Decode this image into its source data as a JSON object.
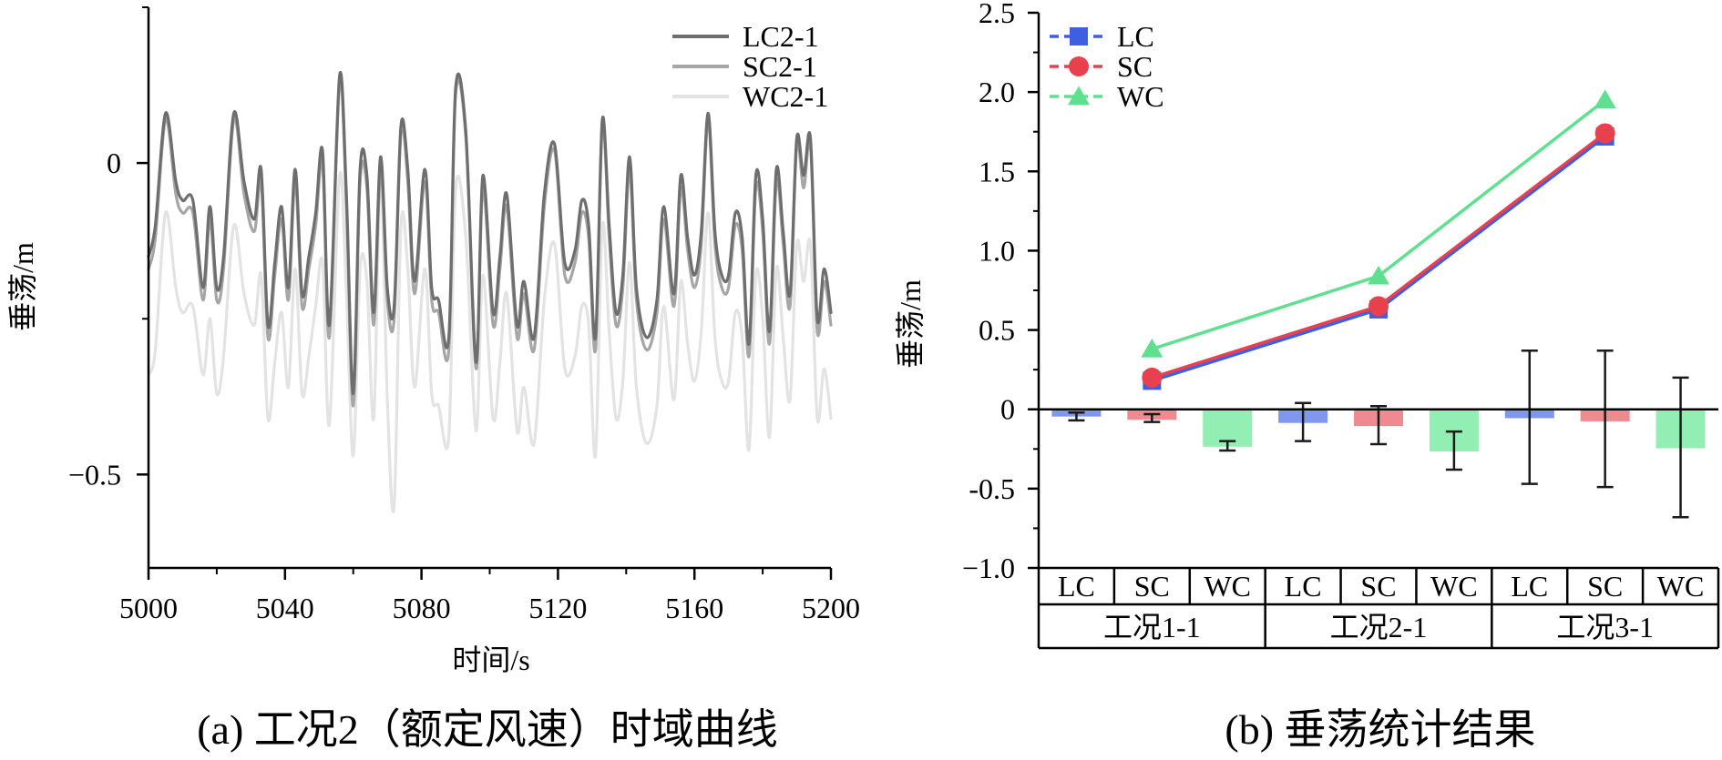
{
  "chart_data": [
    {
      "type": "line",
      "panel": "a",
      "title": "(a) 工况2（额定风速）时域曲线",
      "xlabel": "时间/s",
      "ylabel": "垂荡/m",
      "xlim": [
        5000,
        5200
      ],
      "ylim": [
        -0.65,
        0.25
      ],
      "xticks": [
        5000,
        5040,
        5080,
        5120,
        5160,
        5200
      ],
      "yticks": [
        0,
        -0.5
      ],
      "ytick_labels": [
        "0",
        "−0.5"
      ],
      "legend_position": "top-right",
      "series": [
        {
          "name": "LC2-1",
          "color": "#6e6e6e",
          "x": [
            5000,
            5002,
            5005,
            5008,
            5010,
            5013,
            5016,
            5018,
            5020,
            5022,
            5025,
            5028,
            5031,
            5033,
            5035,
            5037,
            5039,
            5041,
            5043,
            5045,
            5047,
            5049,
            5051,
            5053,
            5056,
            5058,
            5060,
            5062,
            5064,
            5066,
            5068,
            5070,
            5072,
            5074,
            5076,
            5078,
            5081,
            5083,
            5085,
            5088,
            5090,
            5093,
            5096,
            5098,
            5101,
            5103,
            5105,
            5108,
            5110,
            5113,
            5116,
            5119,
            5122,
            5125,
            5127,
            5129,
            5131,
            5133,
            5135,
            5137,
            5139,
            5141,
            5143,
            5146,
            5149,
            5151,
            5154,
            5156,
            5158,
            5160,
            5162,
            5164,
            5166,
            5168,
            5170,
            5172,
            5174,
            5176,
            5178,
            5180,
            5182,
            5184,
            5186,
            5188,
            5190,
            5192,
            5194,
            5196,
            5198,
            5200
          ],
          "values": [
            -0.15,
            -0.1,
            0.08,
            -0.03,
            -0.06,
            -0.06,
            -0.2,
            -0.07,
            -0.2,
            -0.15,
            0.08,
            -0.03,
            -0.09,
            -0.01,
            -0.26,
            -0.16,
            -0.07,
            -0.2,
            -0.01,
            -0.21,
            -0.15,
            -0.08,
            0.02,
            -0.26,
            0.14,
            -0.05,
            -0.37,
            -0.01,
            -0.02,
            -0.24,
            0.01,
            -0.2,
            -0.23,
            0.06,
            -0.01,
            -0.19,
            -0.01,
            -0.2,
            -0.22,
            -0.28,
            0.12,
            0.05,
            -0.32,
            -0.02,
            -0.24,
            -0.15,
            -0.05,
            -0.26,
            -0.19,
            -0.28,
            -0.05,
            0.03,
            -0.16,
            -0.14,
            -0.06,
            -0.1,
            -0.28,
            0.07,
            -0.1,
            -0.24,
            -0.18,
            0.01,
            -0.2,
            -0.28,
            -0.22,
            -0.07,
            -0.21,
            -0.02,
            -0.12,
            -0.18,
            -0.11,
            0.08,
            -0.11,
            -0.18,
            -0.18,
            -0.08,
            -0.12,
            -0.29,
            -0.02,
            -0.09,
            -0.27,
            -0.01,
            -0.11,
            -0.21,
            0.04,
            -0.02,
            0.04,
            -0.25,
            -0.17,
            -0.24
          ]
        },
        {
          "name": "SC2-1",
          "color": "#a6a6a6",
          "x": [
            5000,
            5002,
            5005,
            5008,
            5010,
            5013,
            5016,
            5018,
            5020,
            5022,
            5025,
            5028,
            5031,
            5033,
            5035,
            5037,
            5039,
            5041,
            5043,
            5045,
            5047,
            5049,
            5051,
            5053,
            5056,
            5058,
            5060,
            5062,
            5064,
            5066,
            5068,
            5070,
            5072,
            5074,
            5076,
            5078,
            5081,
            5083,
            5085,
            5088,
            5090,
            5093,
            5096,
            5098,
            5101,
            5103,
            5105,
            5108,
            5110,
            5113,
            5116,
            5119,
            5122,
            5125,
            5127,
            5129,
            5131,
            5133,
            5135,
            5137,
            5139,
            5141,
            5143,
            5146,
            5149,
            5151,
            5154,
            5156,
            5158,
            5160,
            5162,
            5164,
            5166,
            5168,
            5170,
            5172,
            5174,
            5176,
            5178,
            5180,
            5182,
            5184,
            5186,
            5188,
            5190,
            5192,
            5194,
            5196,
            5198,
            5200
          ],
          "values": [
            -0.17,
            -0.12,
            0.07,
            -0.05,
            -0.08,
            -0.08,
            -0.22,
            -0.09,
            -0.22,
            -0.17,
            0.07,
            -0.05,
            -0.11,
            -0.03,
            -0.28,
            -0.18,
            -0.09,
            -0.22,
            -0.03,
            -0.23,
            -0.17,
            -0.1,
            0.0,
            -0.28,
            0.13,
            -0.07,
            -0.39,
            -0.03,
            -0.04,
            -0.26,
            -0.01,
            -0.22,
            -0.25,
            0.05,
            -0.03,
            -0.21,
            -0.03,
            -0.22,
            -0.24,
            -0.3,
            0.11,
            0.04,
            -0.33,
            -0.04,
            -0.26,
            -0.17,
            -0.07,
            -0.28,
            -0.21,
            -0.3,
            -0.07,
            0.02,
            -0.18,
            -0.16,
            -0.08,
            -0.12,
            -0.3,
            0.06,
            -0.12,
            -0.26,
            -0.2,
            -0.01,
            -0.22,
            -0.3,
            -0.24,
            -0.09,
            -0.23,
            -0.04,
            -0.14,
            -0.2,
            -0.13,
            0.07,
            -0.13,
            -0.2,
            -0.2,
            -0.1,
            -0.14,
            -0.31,
            -0.04,
            -0.11,
            -0.29,
            -0.03,
            -0.13,
            -0.23,
            0.03,
            -0.04,
            0.03,
            -0.27,
            -0.19,
            -0.26
          ]
        },
        {
          "name": "WC2-1",
          "color": "#e3e3e3",
          "x": [
            5000,
            5002,
            5005,
            5008,
            5010,
            5013,
            5016,
            5018,
            5020,
            5022,
            5025,
            5028,
            5031,
            5033,
            5035,
            5037,
            5039,
            5041,
            5043,
            5045,
            5047,
            5049,
            5051,
            5053,
            5056,
            5058,
            5060,
            5062,
            5064,
            5066,
            5068,
            5070,
            5072,
            5074,
            5076,
            5078,
            5081,
            5083,
            5085,
            5088,
            5090,
            5093,
            5096,
            5098,
            5101,
            5103,
            5105,
            5108,
            5110,
            5113,
            5116,
            5119,
            5122,
            5125,
            5127,
            5129,
            5131,
            5133,
            5135,
            5137,
            5139,
            5141,
            5143,
            5146,
            5149,
            5151,
            5154,
            5156,
            5158,
            5160,
            5162,
            5164,
            5166,
            5168,
            5170,
            5172,
            5174,
            5176,
            5178,
            5180,
            5182,
            5184,
            5186,
            5188,
            5190,
            5192,
            5194,
            5196,
            5198,
            5200
          ],
          "values": [
            -0.34,
            -0.3,
            -0.08,
            -0.2,
            -0.24,
            -0.23,
            -0.34,
            -0.25,
            -0.37,
            -0.31,
            -0.1,
            -0.21,
            -0.26,
            -0.18,
            -0.41,
            -0.32,
            -0.24,
            -0.36,
            -0.17,
            -0.37,
            -0.31,
            -0.23,
            -0.16,
            -0.42,
            -0.02,
            -0.21,
            -0.47,
            -0.17,
            -0.19,
            -0.41,
            -0.02,
            -0.38,
            -0.55,
            -0.1,
            -0.17,
            -0.36,
            -0.17,
            -0.37,
            -0.39,
            -0.44,
            -0.04,
            -0.12,
            -0.43,
            -0.18,
            -0.41,
            -0.32,
            -0.21,
            -0.43,
            -0.36,
            -0.45,
            -0.22,
            -0.13,
            -0.33,
            -0.31,
            -0.23,
            -0.26,
            -0.47,
            -0.1,
            -0.27,
            -0.41,
            -0.35,
            -0.16,
            -0.36,
            -0.45,
            -0.39,
            -0.23,
            -0.38,
            -0.19,
            -0.29,
            -0.35,
            -0.27,
            -0.08,
            -0.28,
            -0.35,
            -0.35,
            -0.24,
            -0.28,
            -0.46,
            -0.18,
            -0.25,
            -0.44,
            -0.17,
            -0.28,
            -0.38,
            -0.13,
            -0.19,
            -0.13,
            -0.41,
            -0.33,
            -0.41
          ]
        }
      ]
    },
    {
      "type": "bar+line",
      "panel": "b",
      "title": "(b) 垂荡统计结果",
      "ylabel": "垂荡/m",
      "ylim": [
        -1.0,
        2.5
      ],
      "yticks": [
        -1.0,
        -0.5,
        0,
        0.5,
        1.0,
        1.5,
        2.0,
        2.5
      ],
      "ytick_labels": [
        "−1.0",
        "-0.5",
        "0",
        "0.5",
        "1.0",
        "1.5",
        "2.0",
        "2.5"
      ],
      "groups": [
        "工况1-1",
        "工况2-1",
        "工况3-1"
      ],
      "subcategories": [
        "LC",
        "SC",
        "WC"
      ],
      "legend_position": "top-left",
      "lines": [
        {
          "name": "LC",
          "color": "#3d5fe0",
          "marker": "square",
          "values": [
            0.18,
            0.63,
            1.72
          ]
        },
        {
          "name": "SC",
          "color": "#e8404d",
          "marker": "circle",
          "values": [
            0.2,
            0.65,
            1.74
          ]
        },
        {
          "name": "WC",
          "color": "#5ee08e",
          "marker": "triangle",
          "values": [
            0.38,
            0.84,
            1.95
          ]
        }
      ],
      "bars": [
        {
          "group": "工况1-1",
          "sub": "LC",
          "mean": -0.04,
          "err_low": -0.07,
          "err_high": -0.02,
          "color": "#7f97ee"
        },
        {
          "group": "工况1-1",
          "sub": "SC",
          "mean": -0.06,
          "err_low": -0.08,
          "err_high": -0.03,
          "color": "#ee8a90"
        },
        {
          "group": "工况1-1",
          "sub": "WC",
          "mean": -0.23,
          "err_low": -0.26,
          "err_high": -0.2,
          "color": "#92eeb2"
        },
        {
          "group": "工况2-1",
          "sub": "LC",
          "mean": -0.08,
          "err_low": -0.2,
          "err_high": 0.04,
          "color": "#7f97ee"
        },
        {
          "group": "工况2-1",
          "sub": "SC",
          "mean": -0.1,
          "err_low": -0.22,
          "err_high": 0.02,
          "color": "#ee8a90"
        },
        {
          "group": "工况2-1",
          "sub": "WC",
          "mean": -0.26,
          "err_low": -0.38,
          "err_high": -0.14,
          "color": "#92eeb2"
        },
        {
          "group": "工况3-1",
          "sub": "LC",
          "mean": -0.05,
          "err_low": -0.47,
          "err_high": 0.37,
          "color": "#7f97ee"
        },
        {
          "group": "工况3-1",
          "sub": "SC",
          "mean": -0.07,
          "err_low": -0.49,
          "err_high": 0.37,
          "color": "#ee8a90"
        },
        {
          "group": "工况3-1",
          "sub": "WC",
          "mean": -0.24,
          "err_low": -0.68,
          "err_high": 0.2,
          "color": "#92eeb2"
        }
      ]
    }
  ]
}
